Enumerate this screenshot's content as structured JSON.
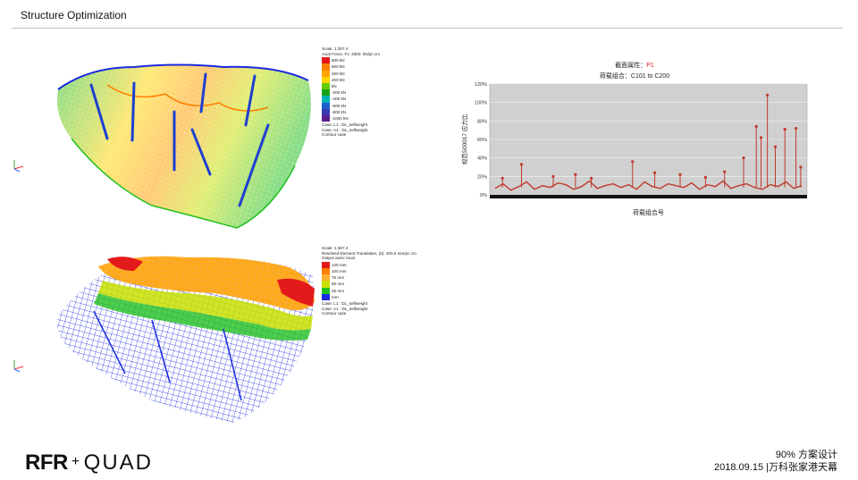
{
  "slide": {
    "title": "Structure Optimization",
    "footer_line1": "90% 方案设计",
    "footer_line2": "2018.09.15 |万科张家港天幕",
    "logo_left": "RFR",
    "logo_plus": "+",
    "logo_right": "QUAD"
  },
  "axial_force": {
    "scale": "Scale: 1:307.4",
    "title": "Axial Force, Fx: 2000. kN/pc.cm",
    "levels": [
      "800 kN",
      "600 kN",
      "400 kN",
      "200 kN",
      "kN",
      "-200 kN",
      "-400 kN",
      "-600 kN",
      "-800 kN",
      "-1000 kN"
    ],
    "colors": [
      "#e31a1c",
      "#ff7f00",
      "#ffa500",
      "#ffd400",
      "#66cc00",
      "#19a319",
      "#00b3b3",
      "#1f5fd0",
      "#3a3ab0",
      "#5a1f8a"
    ],
    "case1": "Case: L1 : DL_selfweight",
    "case2": "Case: A1 : DL_selfweight",
    "case3": "Contour case"
  },
  "translation": {
    "scale": "Scale: 1:307.4",
    "title": "Resolved Element Translation, |U|: 400.0 mm/pc.cm",
    "axes": "Output axes: local",
    "levels": [
      "125 mm",
      "100 mm",
      "75 mm",
      "50 mm",
      "25 mm",
      "mm"
    ],
    "colors": [
      "#e31a1c",
      "#ff7f00",
      "#ffb030",
      "#c8e000",
      "#22c020",
      "#1a2ae0"
    ],
    "case1": "Case: L1 : DL_selfweight",
    "case2": "Case: A1 : DL_selfweight",
    "case3": "Contour case"
  },
  "chart_data": {
    "type": "line",
    "title_label": "截面属性：",
    "title_value": "P1",
    "subtitle": "荷载组合：C101 to C200",
    "ylabel": "规范S00017 应力比",
    "xlabel": "荷载组合号",
    "y_ticks": [
      "0%",
      "20%",
      "40%",
      "60%",
      "80%",
      "100%",
      "120%"
    ],
    "ylim": [
      0,
      120
    ],
    "grid": true,
    "baseline": [
      7,
      12,
      5,
      9,
      14,
      6,
      10,
      8,
      13,
      11,
      6,
      9,
      15,
      7,
      10,
      12,
      8,
      11,
      6,
      14,
      9,
      7,
      12,
      10,
      8,
      13,
      6,
      11,
      9,
      15,
      7,
      10,
      12,
      8,
      6,
      11,
      9,
      14,
      7,
      10
    ],
    "peaks": [
      {
        "x": 0.04,
        "y": 18
      },
      {
        "x": 0.1,
        "y": 33
      },
      {
        "x": 0.2,
        "y": 20
      },
      {
        "x": 0.27,
        "y": 22
      },
      {
        "x": 0.32,
        "y": 18
      },
      {
        "x": 0.45,
        "y": 36
      },
      {
        "x": 0.52,
        "y": 24
      },
      {
        "x": 0.6,
        "y": 22
      },
      {
        "x": 0.68,
        "y": 19
      },
      {
        "x": 0.74,
        "y": 25
      },
      {
        "x": 0.8,
        "y": 40
      },
      {
        "x": 0.84,
        "y": 74
      },
      {
        "x": 0.855,
        "y": 62
      },
      {
        "x": 0.875,
        "y": 108
      },
      {
        "x": 0.9,
        "y": 52
      },
      {
        "x": 0.93,
        "y": 71
      },
      {
        "x": 0.965,
        "y": 72
      },
      {
        "x": 0.98,
        "y": 30
      }
    ]
  }
}
